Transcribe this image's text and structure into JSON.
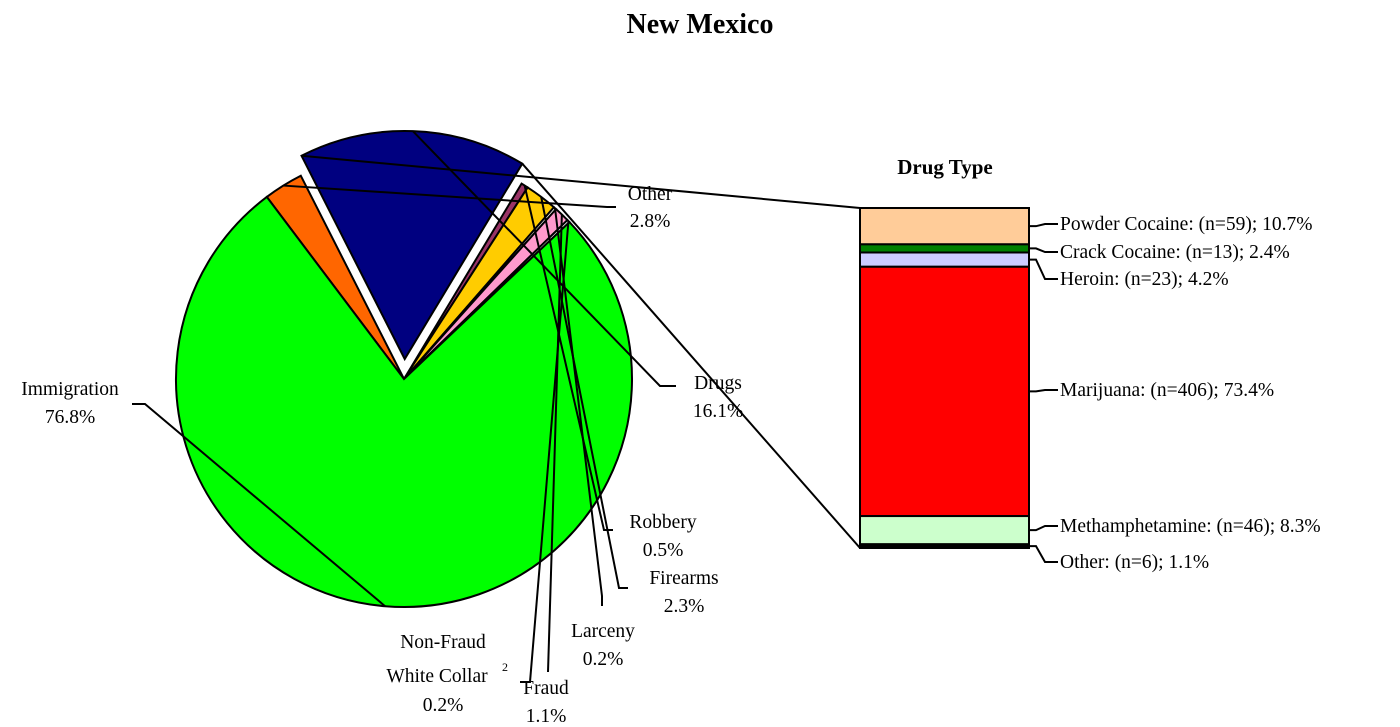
{
  "chart_data": [
    {
      "type": "pie",
      "title": "New Mexico",
      "slices": [
        {
          "key": "other",
          "label": "Other",
          "value": 2.8,
          "pct": "2.8%",
          "color": "#ff6600"
        },
        {
          "key": "drugs",
          "label": "Drugs",
          "value": 16.1,
          "pct": "16.1%",
          "color": "#000080",
          "exploded": true
        },
        {
          "key": "robbery",
          "label": "Robbery",
          "value": 0.5,
          "pct": "0.5%",
          "color": "#993366"
        },
        {
          "key": "firearms",
          "label": "Firearms",
          "value": 2.3,
          "pct": "2.3%",
          "color": "#ffcc00"
        },
        {
          "key": "larceny",
          "label": "Larceny",
          "value": 0.2,
          "pct": "0.2%",
          "color": "#ffffff"
        },
        {
          "key": "fraud",
          "label": "Fraud",
          "value": 1.1,
          "pct": "1.1%",
          "color": "#ff99cc"
        },
        {
          "key": "nonfraud",
          "label_line1": "Non-Fraud",
          "label_line2": "White Collar",
          "superscript": "2",
          "value": 0.2,
          "pct": "0.2%",
          "color": "#ffffff"
        },
        {
          "key": "immigration",
          "label": "Immigration",
          "value": 76.8,
          "pct": "76.8%",
          "color": "#00ff00"
        }
      ]
    },
    {
      "type": "bar",
      "stacked": true,
      "title": "Drug Type",
      "segments": [
        {
          "label": "Powder Cocaine:  (n=59); 10.7%",
          "n": 59,
          "value": 10.7,
          "color": "#ffcc99"
        },
        {
          "label": "Crack Cocaine:  (n=13); 2.4%",
          "n": 13,
          "value": 2.4,
          "color": "#008000"
        },
        {
          "label": "Heroin:  (n=23); 4.2%",
          "n": 23,
          "value": 4.2,
          "color": "#ccccff"
        },
        {
          "label": "Marijuana:  (n=406); 73.4%",
          "n": 406,
          "value": 73.4,
          "color": "#ff0000"
        },
        {
          "label": "Methamphetamine:  (n=46); 8.3%",
          "n": 46,
          "value": 8.3,
          "color": "#ccffcc"
        },
        {
          "label": "Other:  (n=6); 1.1%",
          "n": 6,
          "value": 1.1,
          "color": "#000000"
        }
      ]
    }
  ]
}
